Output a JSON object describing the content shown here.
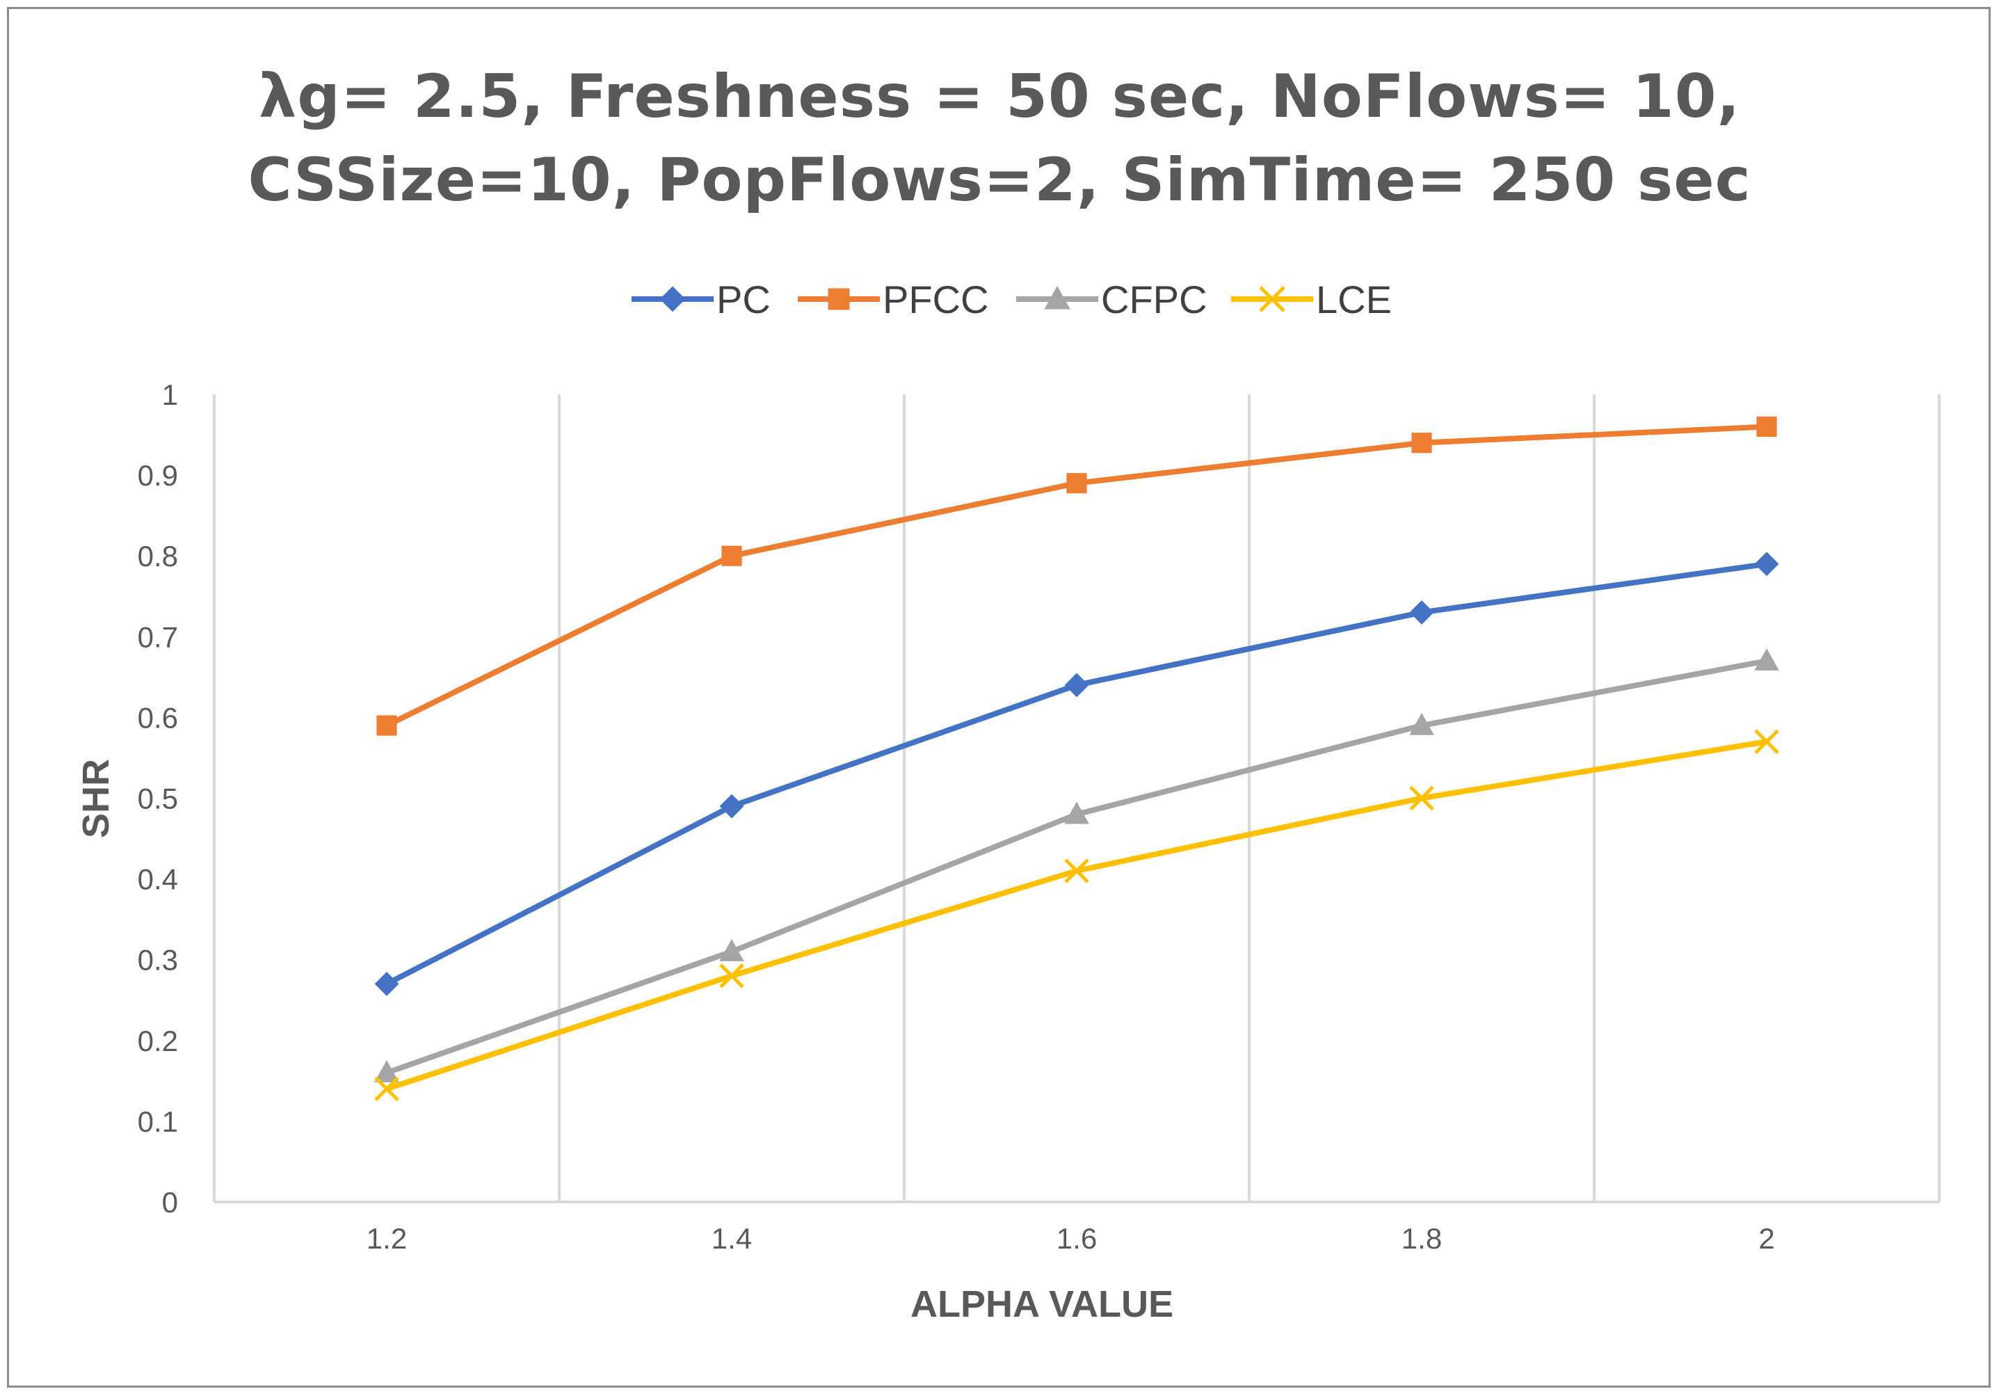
{
  "chart_data": {
    "type": "line",
    "title_lines": [
      "λg= 2.5, Freshness = 50 sec, NoFlows= 10,",
      "CSSize=10, PopFlows=2, SimTime= 250 sec"
    ],
    "xlabel": "ALPHA VALUE",
    "ylabel": "SHR",
    "x": [
      1.2,
      1.4,
      1.6,
      1.8,
      2
    ],
    "x_tick_labels": [
      "1.2",
      "1.4",
      "1.6",
      "1.8",
      "2"
    ],
    "xlim": [
      1.1,
      2.1
    ],
    "ylim": [
      0,
      1
    ],
    "y_ticks": [
      0,
      0.1,
      0.2,
      0.3,
      0.4,
      0.5,
      0.6,
      0.7,
      0.8,
      0.9,
      1
    ],
    "y_tick_labels": [
      "0",
      "0.1",
      "0.2",
      "0.3",
      "0.4",
      "0.5",
      "0.6",
      "0.7",
      "0.8",
      "0.9",
      "1"
    ],
    "grid": "vertical",
    "legend_position": "top-center",
    "series": [
      {
        "name": "PC",
        "color": "#4472C4",
        "marker": "diamond",
        "values": [
          0.27,
          0.49,
          0.64,
          0.73,
          0.79
        ]
      },
      {
        "name": "PFCC",
        "color": "#ED7D31",
        "marker": "square",
        "values": [
          0.59,
          0.8,
          0.89,
          0.94,
          0.96
        ]
      },
      {
        "name": "CFPC",
        "color": "#A5A5A5",
        "marker": "triangle",
        "values": [
          0.16,
          0.31,
          0.48,
          0.59,
          0.67
        ]
      },
      {
        "name": "LCE",
        "color": "#FFC000",
        "marker": "x",
        "values": [
          0.14,
          0.28,
          0.41,
          0.5,
          0.57
        ]
      }
    ]
  }
}
